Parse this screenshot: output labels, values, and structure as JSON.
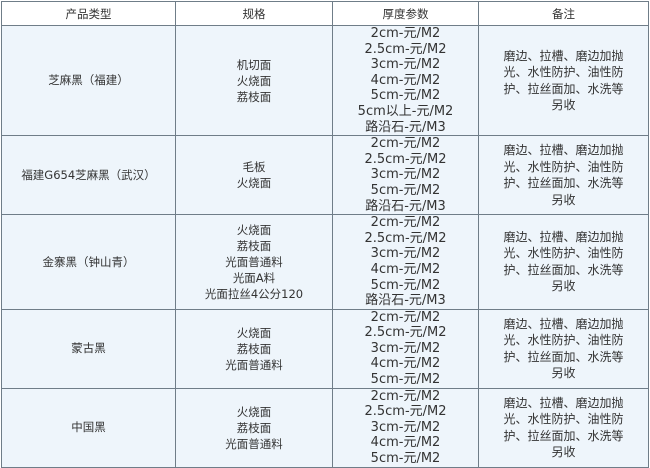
{
  "headers": [
    "产品类型",
    "规格",
    "厚度参数",
    "备注"
  ],
  "rows": [
    {
      "type": "芝麻黑（福建）",
      "specs": [
        "机切面",
        "火烧面",
        "荔枝面"
      ],
      "thickness": [
        "2cm-元/M2",
        "2.5cm-元/M2",
        "3cm-元/M2",
        "4cm-元/M2",
        "5cm-元/M2",
        "5cm以上-元/M2",
        "路沿石-元/M3"
      ],
      "remark": "磨边、拉槽、磨边加抛光、水性防护、油性防护、拉丝面加、水洗等另收"
    },
    {
      "type": "福建G654芝麻黑（武汉）",
      "specs": [
        "毛板",
        "火烧面"
      ],
      "thickness": [
        "2cm-元/M2",
        "2.5cm-元/M2",
        "3cm-元/M2",
        "5cm-元/M2",
        "路沿石-元/M3"
      ],
      "remark": "磨边、拉槽、磨边加抛光、水性防护、油性防护、拉丝面加、水洗等另收"
    },
    {
      "type": "金寨黑（钟山青）",
      "specs": [
        "火烧面",
        "荔枝面",
        "光面普通料",
        "光面A料",
        "光面拉丝4公分120"
      ],
      "thickness": [
        "2cm-元/M2",
        "2.5cm-元/M2",
        "3cm-元/M2",
        "4cm-元/M2",
        "5cm-元/M2",
        "路沿石-元/M3"
      ],
      "remark": "磨边、拉槽、磨边加抛光、水性防护、油性防护、拉丝面加、水洗等另收"
    },
    {
      "type": "蒙古黑",
      "specs": [
        "火烧面",
        "荔枝面",
        "光面普通料"
      ],
      "thickness": [
        "2cm-元/M2",
        "2.5cm-元/M2",
        "3cm-元/M2",
        "4cm-元/M2",
        "5cm-元/M2"
      ],
      "remark": "磨边、拉槽、磨边加抛光、水性防护、油性防护、拉丝面加、水洗等另收"
    },
    {
      "type": "中国黑",
      "specs": [
        "火烧面",
        "荔枝面",
        "光面普通料"
      ],
      "thickness": [
        "2cm-元/M2",
        "2.5cm-元/M2",
        "3cm-元/M2",
        "4cm-元/M2",
        "5cm-元/M2"
      ],
      "remark": "磨边、拉槽、磨边加抛光、水性防护、油性防护、拉丝面加、水洗等另收"
    }
  ],
  "colors": {
    "row_bg": "#eef5fb",
    "border": "#6f7d88",
    "text": "#333333"
  }
}
